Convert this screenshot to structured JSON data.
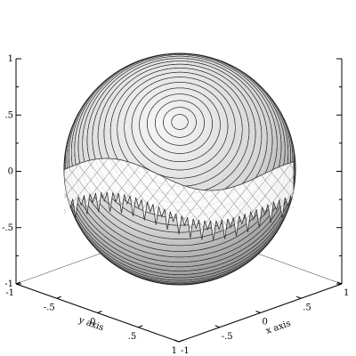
{
  "chart_data": {
    "type": "surface",
    "surface": "sphere",
    "title": "",
    "xlabel": "x axis",
    "ylabel": "y axis",
    "zlabel": "",
    "xlim": [
      -1,
      1
    ],
    "ylim": [
      -1,
      1
    ],
    "zlim": [
      -1,
      1
    ],
    "x_ticks": [
      -1,
      -0.5,
      0,
      0.5,
      1
    ],
    "y_ticks": [
      -1,
      -0.5,
      0,
      0.5,
      1
    ],
    "z_ticks": [
      -1,
      -0.5,
      0,
      0.5,
      1
    ],
    "x_tick_labels": [
      "-1",
      "-.5",
      "0",
      ".5",
      "1"
    ],
    "y_tick_labels": [
      "-1",
      "-.5",
      "0",
      ".5",
      "1"
    ],
    "z_tick_labels": [
      "-1",
      "-.5",
      "0",
      ".5",
      "1"
    ],
    "shading": "grayscale",
    "colors": {
      "surface_light": "#f4f4f4",
      "surface_dark": "#8a8a8a",
      "mesh": "#222222"
    }
  }
}
